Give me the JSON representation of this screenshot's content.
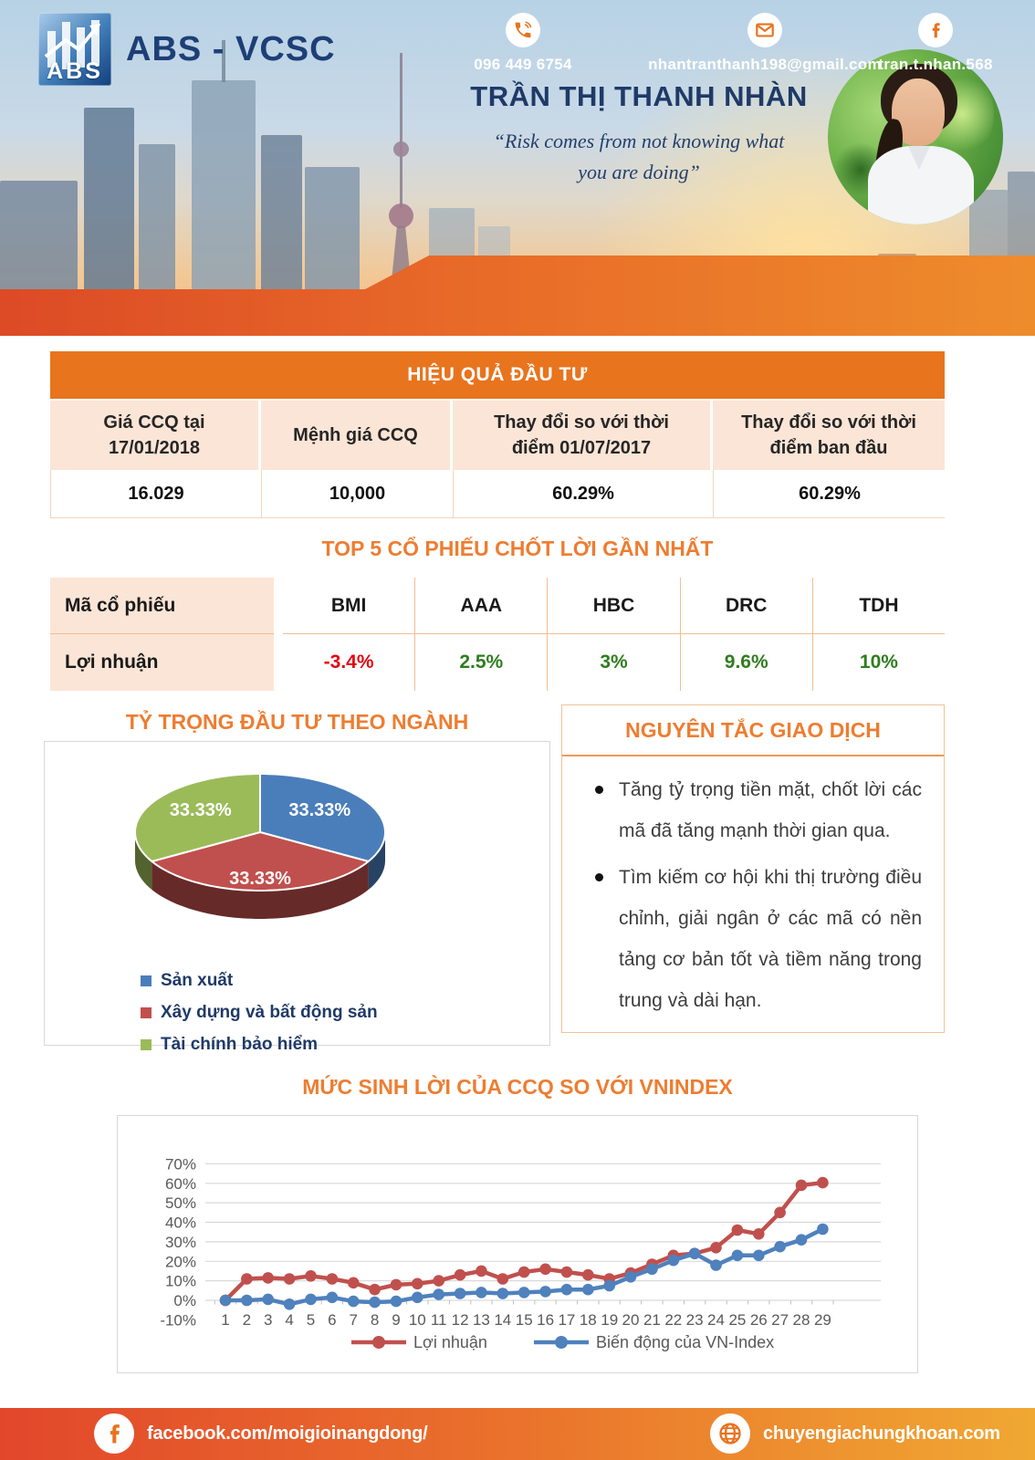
{
  "colors": {
    "accent_orange": "#ed7d31",
    "table_header_orange": "#e8741e",
    "peach": "#fbe5d6",
    "peach_border": "#f2bd93",
    "navy": "#1f3a68",
    "profit_red": "#e30613",
    "profit_green": "#2e7d1e",
    "band_gradient": [
      "#dc4a26",
      "#ee8c2c"
    ],
    "footer_gradient": [
      "#e2472b",
      "#f0a832"
    ],
    "chart_red": "#c0504d",
    "chart_blue": "#4f81bd",
    "gray_label": "#595959"
  },
  "header": {
    "logo_abbr": "ABS",
    "logo_title": "ABS - VCSC",
    "name": "TRẦN THỊ THANH NHÀN",
    "quote_line1": "“Risk comes from not knowing what",
    "quote_line2": "you are doing”",
    "contacts": [
      {
        "icon": "phone-icon",
        "value": "096 449 6754"
      },
      {
        "icon": "email-icon",
        "value": "nhantranthanh198@gmail.com"
      },
      {
        "icon": "facebook-icon",
        "value": "tran.t.nhan.568"
      }
    ]
  },
  "performance_table": {
    "title": "HIỆU QUẢ ĐẦU TƯ",
    "columns": [
      "Giá CCQ tại 17/01/2018",
      "Mệnh giá CCQ",
      "Thay đổi so với thời điểm 01/07/2017",
      "Thay đổi so với thời điểm ban đầu"
    ],
    "values": [
      "16.029",
      "10,000",
      "60.29%",
      "60.29%"
    ]
  },
  "top5": {
    "title": "TOP 5 CỔ PHIẾU CHỐT LỜI GẦN NHẤT",
    "row1_label": "Mã cổ phiếu",
    "row2_label": "Lợi nhuận",
    "tickers": [
      "BMI",
      "AAA",
      "HBC",
      "DRC",
      "TDH"
    ],
    "profits": [
      "-3.4%",
      "2.5%",
      "3%",
      "9.6%",
      "10%"
    ],
    "profit_colors": [
      "#e30613",
      "#2e7d1e",
      "#2e7d1e",
      "#2e7d1e",
      "#2e7d1e"
    ]
  },
  "rules": {
    "title": "NGUYÊN TẮC GIAO DỊCH",
    "bullets": [
      "Tăng tỷ trọng tiền mặt, chốt lời các mã đã tăng mạnh thời gian qua.",
      "Tìm kiếm cơ hội khi thị trường điều chỉnh, giải ngân ở các mã có nền tảng cơ bản tốt và tiềm năng trong trung và dài hạn."
    ]
  },
  "chart_data": [
    {
      "type": "pie",
      "style": "3d",
      "title": "TỶ TRỌNG ĐẦU TƯ THEO NGÀNH",
      "labels": [
        "Sản xuất",
        "Xây dựng và bất động sản",
        "Tài chính bảo hiểm"
      ],
      "values": [
        33.33,
        33.33,
        33.33
      ],
      "value_labels": [
        "33.33%",
        "33.33%",
        "33.33%"
      ],
      "colors": [
        "#4a7eba",
        "#c0504d",
        "#9bbb59"
      ],
      "legend_position": "bottom-left"
    },
    {
      "type": "line",
      "title": "MỨC SINH LỜI CỦA CCQ SO VỚI VNINDEX",
      "x": [
        1,
        2,
        3,
        4,
        5,
        6,
        7,
        8,
        9,
        10,
        11,
        12,
        13,
        14,
        15,
        16,
        17,
        18,
        19,
        20,
        21,
        22,
        23,
        24,
        25,
        26,
        27,
        28,
        29
      ],
      "series": [
        {
          "name": "Lợi nhuận",
          "color": "#c0504d",
          "values": [
            0,
            11,
            11.5,
            11,
            12.5,
            11,
            9,
            5.5,
            8,
            8.5,
            10,
            13,
            15,
            11,
            14.5,
            16,
            14.5,
            13,
            11,
            14,
            18.5,
            23,
            24,
            27,
            36,
            34,
            45,
            59,
            60.29
          ]
        },
        {
          "name": "Biến động của VN-Index",
          "color": "#4f81bd",
          "values": [
            0,
            0,
            0.5,
            -2,
            0.5,
            1.5,
            -0.5,
            -1,
            -0.5,
            1.5,
            3,
            3.5,
            4,
            3.5,
            4,
            4.5,
            5.5,
            5.5,
            7.5,
            12,
            16,
            20.5,
            24,
            18,
            23,
            23,
            27.5,
            31,
            36.5
          ]
        }
      ],
      "ylim": [
        -10,
        70
      ],
      "ytick_step": 10,
      "grid": true,
      "legend_position": "bottom"
    }
  ],
  "footer": {
    "facebook_icon": "facebook-icon",
    "facebook": "facebook.com/moigioinangdong/",
    "website_icon": "globe-icon",
    "website": "chuyengiachungkhoan.com"
  }
}
